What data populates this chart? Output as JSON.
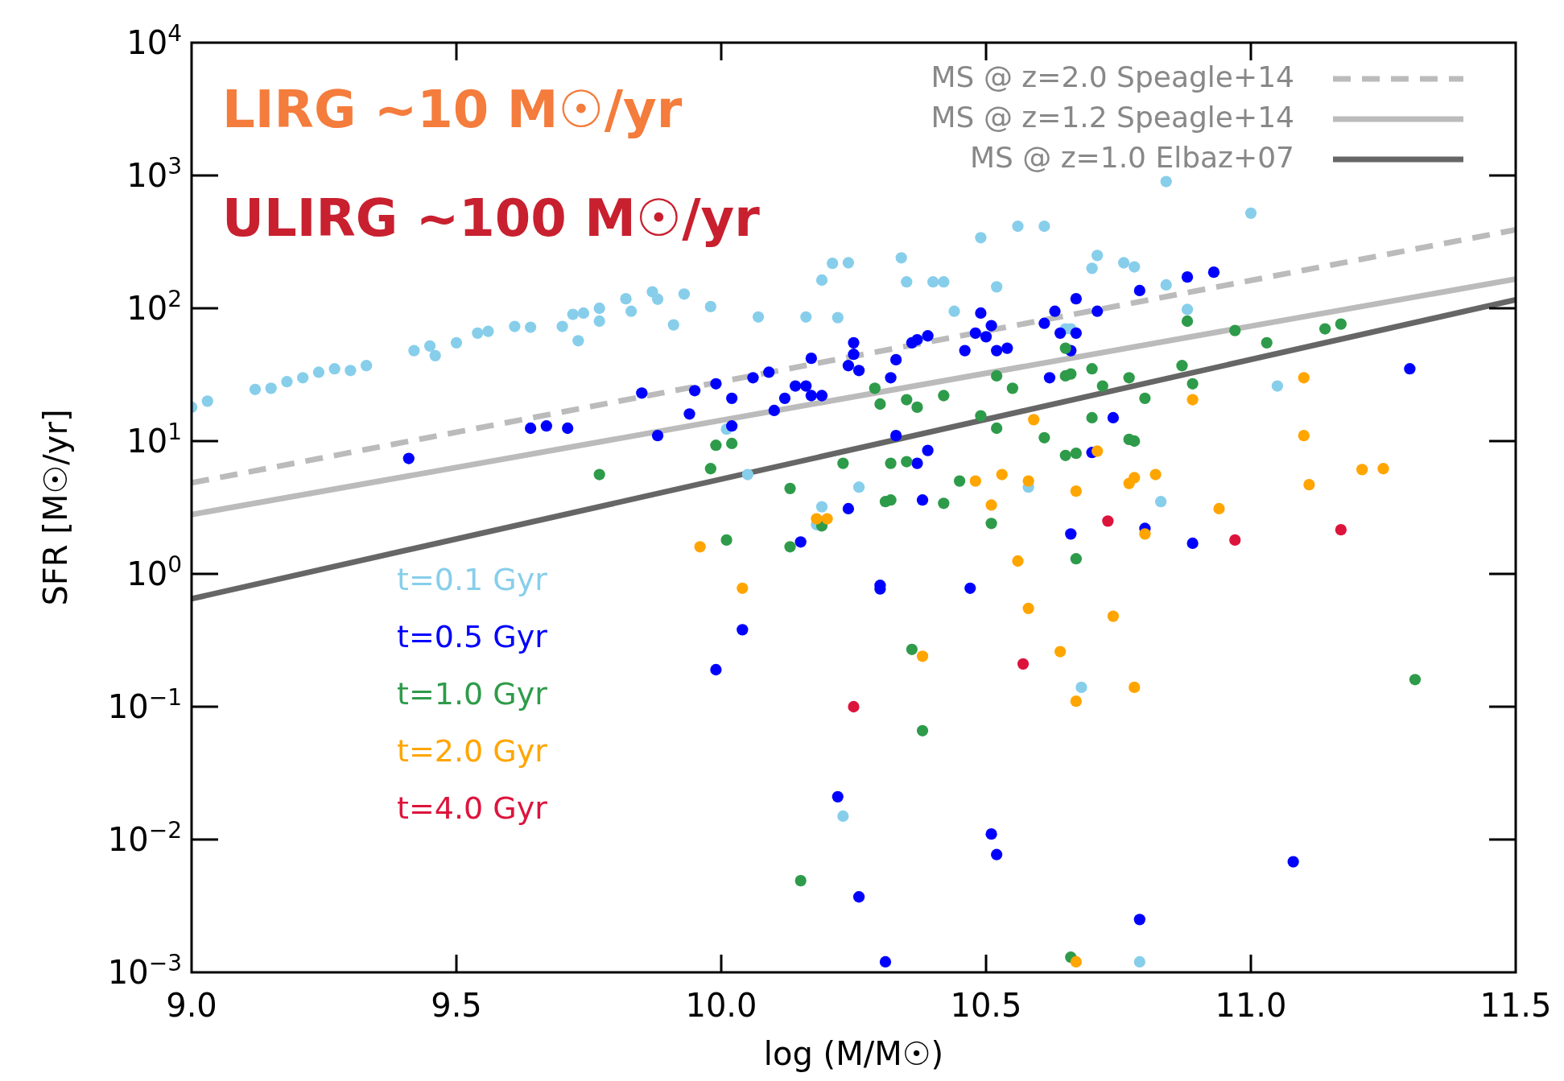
{
  "chart_data": {
    "type": "scatter",
    "xlabel": "log (M/M☉)",
    "ylabel": "SFR [M☉/yr]",
    "log": "y",
    "marker": "circle",
    "grid": false,
    "legend": "top right",
    "annotations": [
      "LIRG ~10 M☉/yr",
      "ULIRG ~100 M☉/yr"
    ],
    "xlim": [
      9,
      11.5
    ],
    "ylim": [
      0.001,
      10000
    ],
    "xticks": [
      {
        "value": 9,
        "label": "9.0"
      },
      {
        "value": 9.5,
        "label": "9.5"
      },
      {
        "value": 10,
        "label": "10.0"
      },
      {
        "value": 10.5,
        "label": "10.5"
      },
      {
        "value": 11,
        "label": "11.0"
      },
      {
        "value": 11.5,
        "label": "11.5"
      }
    ],
    "yticks": [
      {
        "value": 0.001,
        "label": "10$^{−3}$"
      },
      {
        "value": 0.01,
        "label": "10$^{−2}$"
      },
      {
        "value": 0.1,
        "label": "10$^{−1}$"
      },
      {
        "value": 1,
        "label": "10$^{0}$"
      },
      {
        "value": 10,
        "label": "10$^{1}$"
      },
      {
        "value": 100,
        "label": "10$^{2}$"
      },
      {
        "value": 1000,
        "label": "10$^{3}$"
      },
      {
        "value": 10000,
        "label": "10$^{4}$"
      }
    ],
    "series": [
      {
        "type": "line",
        "name": "MS @ z=2.0 Speagle+14",
        "color": "#bbbbbb",
        "line_style": "dashed",
        "marker": "none",
        "x": [
          9,
          11.5
        ],
        "values": [
          4.85,
          390
        ]
      },
      {
        "type": "line",
        "name": "MS @ z=1.2 Speagle+14",
        "color": "#bbbbbb",
        "line_style": "solid",
        "marker": "none",
        "x": [
          9,
          11.5
        ],
        "values": [
          2.8,
          166
        ]
      },
      {
        "type": "line",
        "name": "MS @ z=1.0 Elbaz+07",
        "color": "#666666",
        "line_style": "solid",
        "marker": "none",
        "x": [
          9,
          11.5
        ],
        "values": [
          0.65,
          116
        ]
      },
      {
        "name": "t=0.1 Gyr",
        "color": "#87ceeb",
        "x": [
          9.0,
          9.03,
          9.12,
          9.15,
          9.18,
          9.21,
          9.24,
          9.27,
          9.3,
          9.33,
          9.42,
          9.45,
          9.46,
          9.5,
          9.54,
          9.56,
          9.61,
          9.64,
          9.7,
          9.72,
          9.74,
          9.73,
          9.77,
          9.77,
          9.82,
          9.83,
          9.87,
          9.88,
          9.91,
          9.93,
          9.98,
          10.01,
          10.05,
          10.07,
          10.16,
          10.18,
          10.19,
          10.19,
          10.21,
          10.22,
          10.23,
          10.24,
          10.26,
          10.34,
          10.35,
          10.4,
          10.42,
          10.44,
          10.49,
          10.52,
          10.56,
          10.58,
          10.61,
          10.65,
          10.66,
          10.68,
          10.7,
          10.71,
          10.76,
          10.78,
          10.79,
          10.83,
          10.84,
          10.84,
          10.88,
          11.0,
          11.05
        ],
        "values": [
          18,
          20,
          24.5,
          25,
          28,
          30,
          33,
          35,
          34,
          37,
          48,
          52,
          44,
          55,
          65,
          67,
          73,
          72,
          73,
          90,
          92,
          57,
          100,
          80,
          118,
          95,
          133,
          117,
          75,
          128,
          103,
          12.3,
          5.6,
          86,
          86,
          2.35,
          163,
          3.2,
          218,
          85,
          0.015,
          220,
          4.5,
          240,
          158,
          158,
          158,
          95,
          340,
          145,
          415,
          4.5,
          415,
          70,
          70,
          0.14,
          200,
          250,
          220,
          205,
          0.0012,
          3.5,
          900,
          150,
          98,
          520,
          26
        ]
      },
      {
        "name": "t=0.5 Gyr",
        "color": "#0000ff",
        "x": [
          9.41,
          9.64,
          9.67,
          9.71,
          9.85,
          9.88,
          9.94,
          9.95,
          9.99,
          9.99,
          10.02,
          10.02,
          10.04,
          10.06,
          10.09,
          10.1,
          10.12,
          10.14,
          10.15,
          10.16,
          10.17,
          10.17,
          10.19,
          10.22,
          10.24,
          10.24,
          10.25,
          10.25,
          10.26,
          10.26,
          10.3,
          10.3,
          10.31,
          10.32,
          10.33,
          10.33,
          10.36,
          10.37,
          10.37,
          10.38,
          10.39,
          10.39,
          10.46,
          10.47,
          10.48,
          10.49,
          10.5,
          10.51,
          10.51,
          10.52,
          10.52,
          10.54,
          10.61,
          10.62,
          10.63,
          10.64,
          10.66,
          10.66,
          10.67,
          10.67,
          10.7,
          10.71,
          10.74,
          10.79,
          10.79,
          10.8,
          10.88,
          10.89,
          10.93,
          11.08,
          11.3
        ],
        "values": [
          7.4,
          12.5,
          13,
          12.5,
          23,
          11,
          16,
          24,
          27,
          0.19,
          21,
          13,
          0.38,
          30,
          33,
          17,
          21,
          26,
          1.74,
          26,
          42,
          22,
          22,
          0.021,
          3.1,
          37,
          45,
          55,
          34,
          0.0037,
          0.82,
          0.77,
          0.0012,
          30,
          11,
          41,
          55,
          58,
          6.8,
          3.6,
          8.5,
          62,
          48,
          0.78,
          65,
          92,
          61,
          74,
          0.011,
          48,
          0.0077,
          50,
          77,
          30,
          95,
          65,
          48,
          2.0,
          118,
          65,
          8.2,
          95,
          15,
          136,
          0.0025,
          2.2,
          172,
          1.7,
          187,
          0.0068,
          35
        ]
      },
      {
        "name": "t=1.0 Gyr",
        "color": "#2e9b4a",
        "x": [
          9.77,
          9.98,
          9.99,
          10.01,
          10.02,
          10.13,
          10.13,
          10.15,
          10.19,
          10.23,
          10.29,
          10.3,
          10.31,
          10.32,
          10.32,
          10.35,
          10.35,
          10.36,
          10.37,
          10.38,
          10.42,
          10.42,
          10.45,
          10.49,
          10.51,
          10.52,
          10.52,
          10.55,
          10.61,
          10.65,
          10.65,
          10.65,
          10.66,
          10.66,
          10.67,
          10.67,
          10.7,
          10.7,
          10.72,
          10.77,
          10.77,
          10.78,
          10.8,
          10.87,
          10.88,
          10.89,
          10.97,
          11.03,
          11.14,
          11.17,
          11.31
        ],
        "values": [
          5.6,
          6.2,
          9.3,
          1.8,
          9.6,
          4.4,
          1.6,
          0.0049,
          2.3,
          6.8,
          25,
          19,
          3.5,
          3.6,
          6.8,
          7,
          20.5,
          0.27,
          18,
          0.066,
          3.4,
          22,
          5,
          15.5,
          2.4,
          12.5,
          31,
          25,
          10.6,
          50,
          31,
          7.8,
          32,
          0.0013,
          8.1,
          1.3,
          35,
          15,
          26,
          30,
          10.3,
          10,
          21,
          37,
          80,
          27,
          68,
          55,
          70,
          76,
          0.16
        ]
      },
      {
        "name": "t=2.0 Gyr",
        "color": "#ffa500",
        "x": [
          9.96,
          10.04,
          10.18,
          10.2,
          10.38,
          10.48,
          10.51,
          10.53,
          10.56,
          10.58,
          10.58,
          10.59,
          10.64,
          10.67,
          10.67,
          10.67,
          10.71,
          10.74,
          10.77,
          10.78,
          10.78,
          10.8,
          10.82,
          10.89,
          10.94,
          11.1,
          11.1,
          11.11,
          11.21,
          11.25
        ],
        "values": [
          1.6,
          0.78,
          2.6,
          2.6,
          0.24,
          5,
          3.3,
          5.6,
          1.25,
          0.55,
          5,
          14.5,
          0.26,
          0.11,
          4.2,
          0.0012,
          8.4,
          0.48,
          4.8,
          5.3,
          0.14,
          2,
          5.6,
          20.5,
          3.1,
          11,
          30,
          4.7,
          6.1,
          6.2
        ]
      },
      {
        "name": "t=4.0 Gyr",
        "color": "#dc143c",
        "x": [
          10.25,
          10.57,
          10.73,
          10.97,
          11.17
        ],
        "values": [
          0.1,
          0.21,
          2.5,
          1.8,
          2.15
        ]
      }
    ]
  }
}
